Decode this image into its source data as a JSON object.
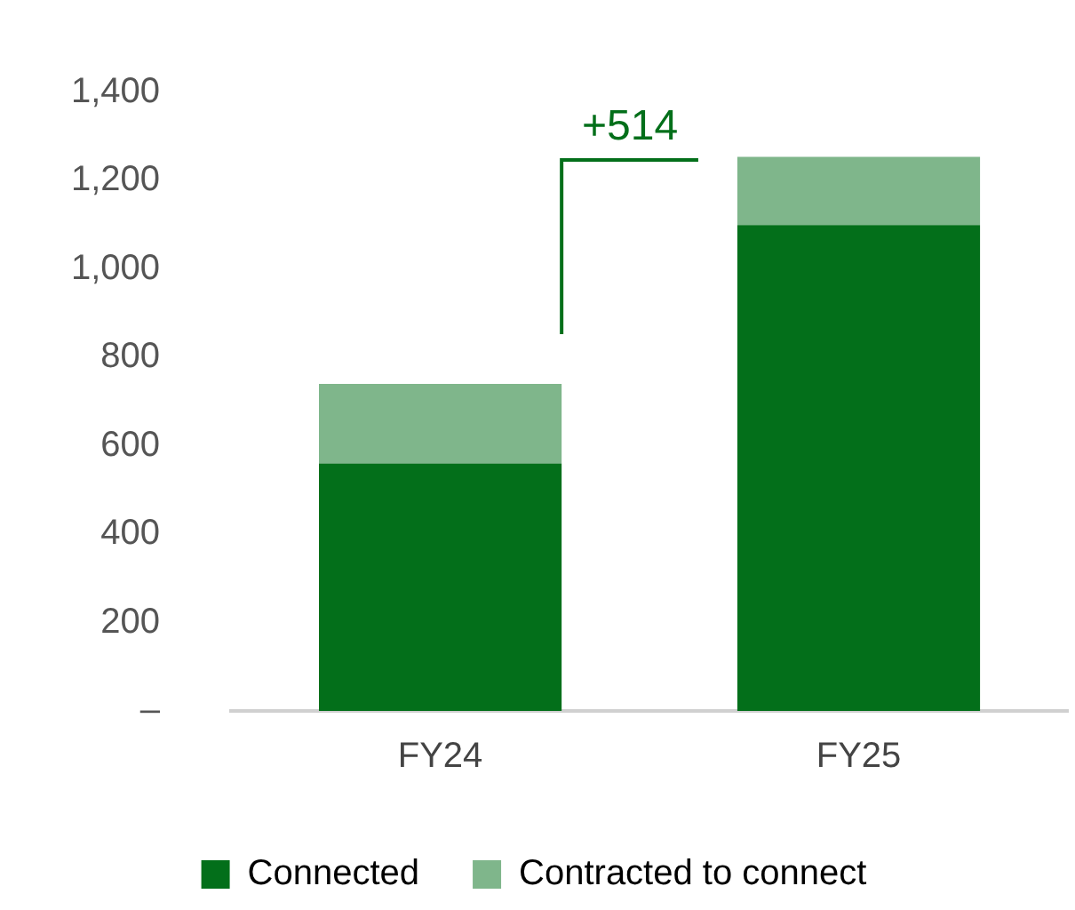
{
  "chart_data": {
    "type": "bar",
    "stacked": true,
    "categories": [
      "FY24",
      "FY25"
    ],
    "series": [
      {
        "name": "Connected",
        "color": "#036f1a",
        "values": [
          560,
          1100
        ]
      },
      {
        "name": "Contracted to connect",
        "color": "#7fb68b",
        "values": [
          180,
          154
        ]
      }
    ],
    "ylim": [
      0,
      1400
    ],
    "yticks": [
      {
        "value": 0,
        "label": "–"
      },
      {
        "value": 200,
        "label": "200"
      },
      {
        "value": 400,
        "label": "400"
      },
      {
        "value": 600,
        "label": "600"
      },
      {
        "value": 800,
        "label": "800"
      },
      {
        "value": 1000,
        "label": "1,000"
      },
      {
        "value": 1200,
        "label": "1,200"
      },
      {
        "value": 1400,
        "label": "1,400"
      }
    ],
    "grid": false,
    "legend": "bottom",
    "annotations": [
      "+514"
    ]
  }
}
